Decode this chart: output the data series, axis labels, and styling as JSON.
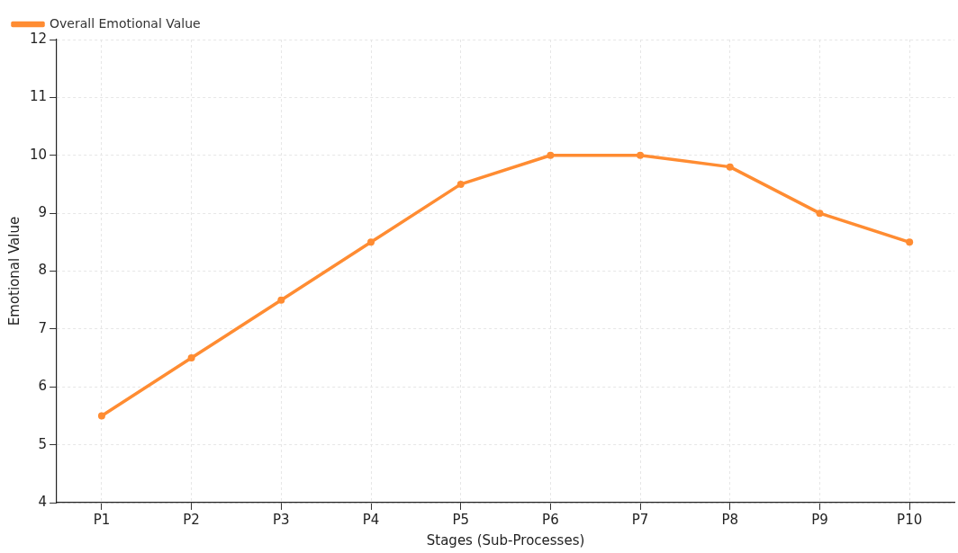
{
  "chart_data": {
    "type": "line",
    "xlabel": "Stages (Sub-Processes)",
    "ylabel": "Emotional Value",
    "categories": [
      "P1",
      "P2",
      "P3",
      "P4",
      "P5",
      "P6",
      "P7",
      "P8",
      "P9",
      "P10"
    ],
    "series": [
      {
        "name": "Overall Emotional Value",
        "color": "#ff8c32",
        "values": [
          5.5,
          6.5,
          7.5,
          8.5,
          9.5,
          10,
          10,
          9.8,
          9,
          8.5
        ]
      }
    ],
    "ylim": [
      4,
      12
    ],
    "yticks": [
      4,
      5,
      6,
      7,
      8,
      9,
      10,
      11,
      12
    ],
    "grid": true,
    "legend": "top left",
    "marker": "circle",
    "line_style": "solid"
  }
}
